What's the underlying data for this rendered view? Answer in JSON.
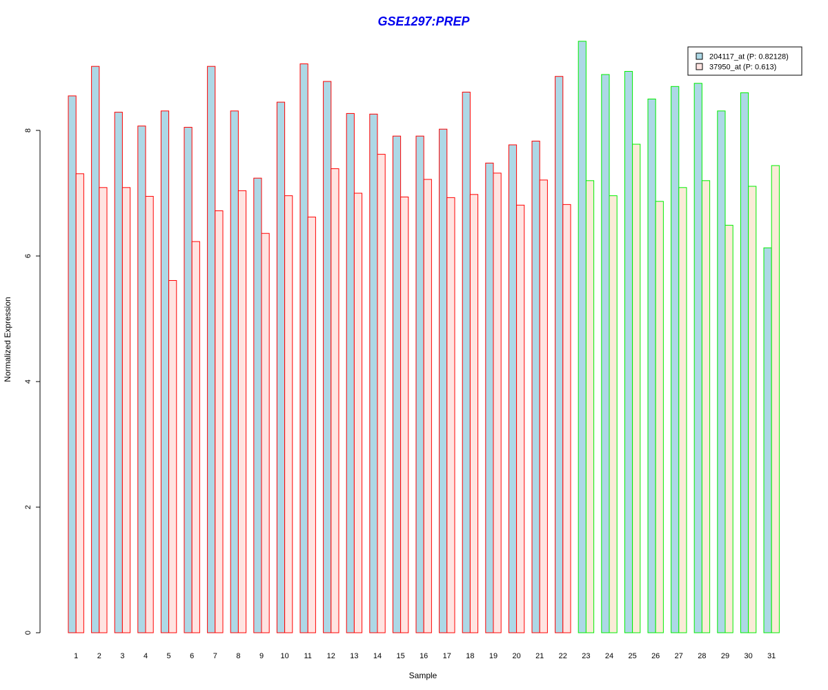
{
  "chart_data": {
    "type": "bar",
    "title": "GSE1297:PREP",
    "xlabel": "Sample",
    "ylabel": "Normalized Expression",
    "ylim": [
      0,
      9.5
    ],
    "yticks": [
      0,
      2,
      4,
      6,
      8
    ],
    "grid": false,
    "legend_position": "top-right",
    "categories": [
      "1",
      "2",
      "3",
      "4",
      "5",
      "6",
      "7",
      "8",
      "9",
      "10",
      "11",
      "12",
      "13",
      "14",
      "15",
      "16",
      "17",
      "18",
      "19",
      "20",
      "21",
      "22",
      "23",
      "24",
      "25",
      "26",
      "27",
      "28",
      "29",
      "30",
      "31"
    ],
    "series": [
      {
        "name": "204117_at (P: 0.82128)",
        "fill": "#add8e6",
        "values": [
          8.55,
          9.02,
          8.29,
          8.07,
          8.31,
          8.05,
          9.02,
          8.31,
          7.24,
          8.45,
          9.06,
          8.78,
          8.27,
          8.26,
          7.91,
          7.91,
          8.02,
          8.61,
          7.48,
          7.77,
          7.83,
          8.86,
          9.42,
          8.89,
          8.94,
          8.5,
          8.7,
          8.75,
          8.31,
          8.6,
          6.13
        ]
      },
      {
        "name": "37950_at (P: 0.613)",
        "fill": "#ffe4e1",
        "fill_alt": "#faebd7",
        "values": [
          7.31,
          7.09,
          7.09,
          6.95,
          5.61,
          6.23,
          6.72,
          7.04,
          6.36,
          6.96,
          6.62,
          7.39,
          7.0,
          7.62,
          6.94,
          7.22,
          6.93,
          6.98,
          7.32,
          6.81,
          7.21,
          6.82,
          7.2,
          6.96,
          7.78,
          6.87,
          7.09,
          7.2,
          6.49,
          7.11,
          7.44
        ]
      }
    ],
    "group_border_colors": {
      "red": "#ff0000",
      "green": "#00ee00"
    },
    "group_of_sample": [
      "red",
      "red",
      "red",
      "red",
      "red",
      "red",
      "red",
      "red",
      "red",
      "red",
      "red",
      "red",
      "red",
      "red",
      "red",
      "red",
      "red",
      "red",
      "red",
      "red",
      "red",
      "red",
      "green",
      "green",
      "green",
      "green",
      "green",
      "green",
      "green",
      "green",
      "green"
    ],
    "title_color": "#0000ee"
  }
}
